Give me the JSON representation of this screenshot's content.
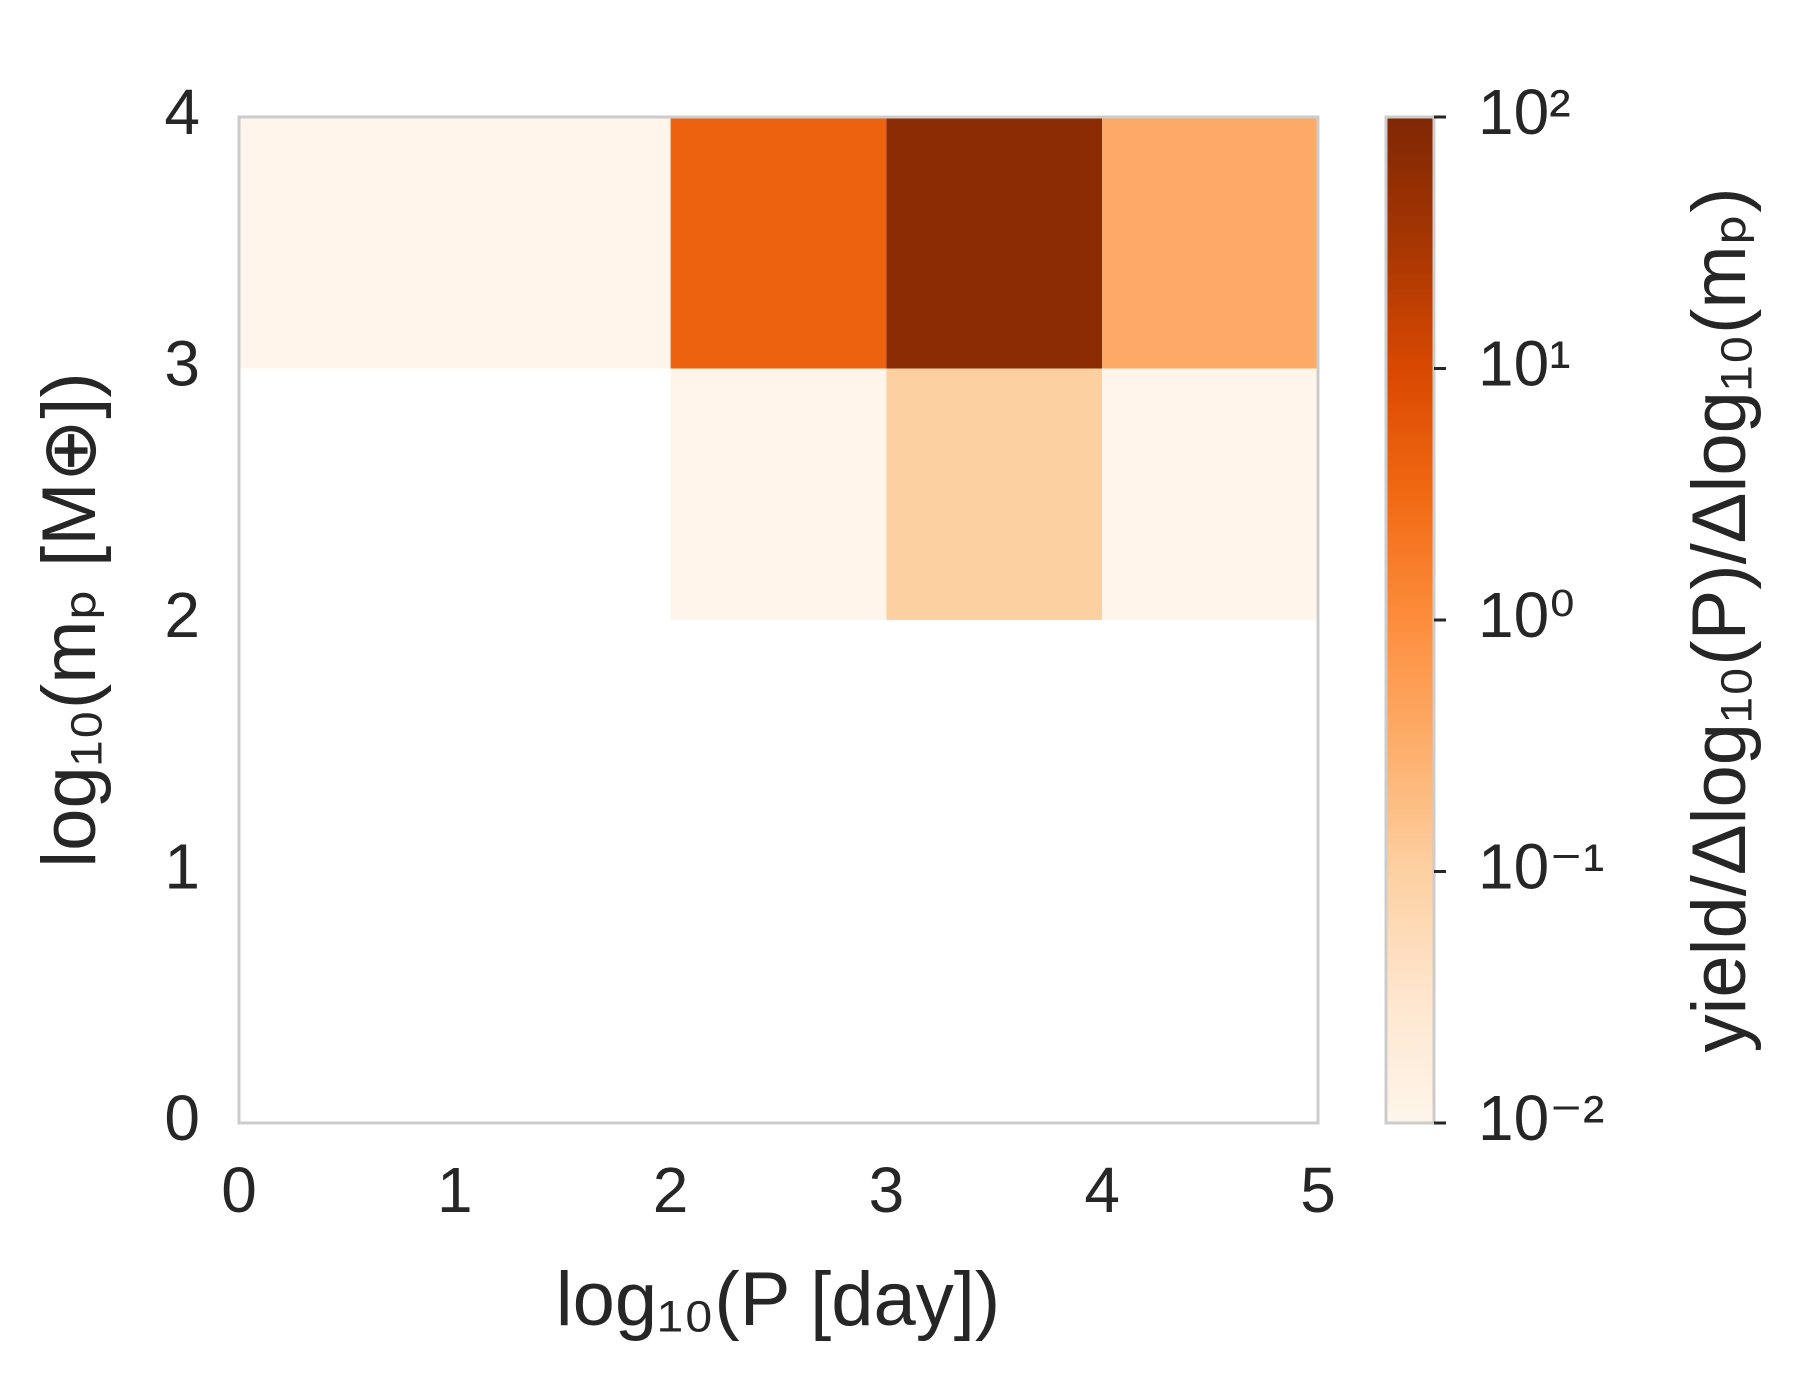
{
  "chart_data": {
    "type": "heatmap",
    "x_label": "log₁₀(P [day])",
    "y_label": "log₁₀(mₚ [M⊕])",
    "colorbar_label": "yield/Δlog₁₀(P)/Δlog₁₀(mₚ)",
    "x_edges": [
      0,
      1,
      2,
      3,
      4,
      5
    ],
    "y_edges": [
      0,
      1,
      2,
      3,
      4
    ],
    "z": [
      [
        null,
        null,
        null,
        null,
        null
      ],
      [
        null,
        null,
        null,
        null,
        null
      ],
      [
        null,
        null,
        0.01,
        0.1,
        0.01
      ],
      [
        0.01,
        0.01,
        4,
        70,
        0.36
      ]
    ],
    "xlim": [
      0,
      5
    ],
    "xticks": [
      0,
      1,
      2,
      3,
      4,
      5
    ],
    "ylim": [
      0,
      4
    ],
    "yticks": [
      0,
      1,
      2,
      3,
      4
    ],
    "colormap": "Oranges",
    "clog": true,
    "clim": [
      0.01,
      100
    ],
    "cticks": [
      {
        "value": 0.01,
        "label": "10⁻²"
      },
      {
        "value": 0.1,
        "label": "10⁻¹"
      },
      {
        "value": 1,
        "label": "10⁰"
      },
      {
        "value": 10,
        "label": "10¹"
      },
      {
        "value": 100,
        "label": "10²"
      }
    ],
    "grid": false
  }
}
